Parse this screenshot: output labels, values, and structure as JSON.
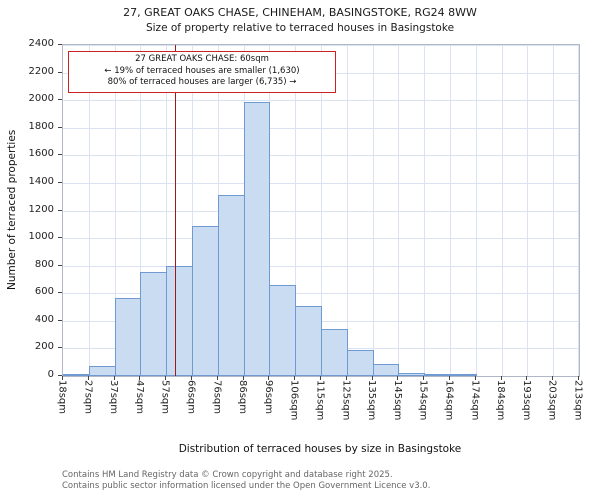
{
  "title": "27, GREAT OAKS CHASE, CHINEHAM, BASINGSTOKE, RG24 8WW",
  "subtitle": "Size of property relative to terraced houses in Basingstoke",
  "annotation": {
    "line1": "27 GREAT OAKS CHASE: 60sqm",
    "line2": "← 19% of terraced houses are smaller (1,630)",
    "line3": "80% of terraced houses are larger (6,735) →"
  },
  "footer": {
    "line1": "Contains HM Land Registry data © Crown copyright and database right 2025.",
    "line2": "Contains public sector information licensed under the Open Government Licence v3.0."
  },
  "chart_data": {
    "type": "bar",
    "title": "27, GREAT OAKS CHASE, CHINEHAM, BASINGSTOKE, RG24 8WW",
    "subtitle": "Size of property relative to terraced houses in Basingstoke",
    "xlabel": "Distribution of terraced houses by size in Basingstoke",
    "ylabel": "Number of terraced properties",
    "ylim": [
      0,
      2400
    ],
    "ytick_step": 200,
    "grid": true,
    "categories": [
      "18sqm",
      "27sqm",
      "37sqm",
      "47sqm",
      "57sqm",
      "66sqm",
      "76sqm",
      "86sqm",
      "96sqm",
      "106sqm",
      "115sqm",
      "125sqm",
      "135sqm",
      "145sqm",
      "154sqm",
      "164sqm",
      "174sqm",
      "184sqm",
      "193sqm",
      "203sqm",
      "213sqm"
    ],
    "edges": [
      18,
      27,
      37,
      47,
      57,
      66,
      76,
      86,
      96,
      106,
      115,
      125,
      135,
      145,
      154,
      164,
      174,
      184,
      193,
      203,
      213
    ],
    "values": [
      10,
      75,
      565,
      755,
      800,
      1090,
      1310,
      1990,
      660,
      510,
      340,
      190,
      90,
      25,
      12,
      5,
      0,
      0,
      0,
      0
    ],
    "marker": {
      "value": 60,
      "label": "60sqm"
    },
    "colors": {
      "bar_fill": "#cadcf1",
      "bar_border": "#6f9bd2",
      "grid": "#dbe2f1",
      "marker_line": "#9e1a1a",
      "annotation_border": "#cc2222"
    }
  }
}
